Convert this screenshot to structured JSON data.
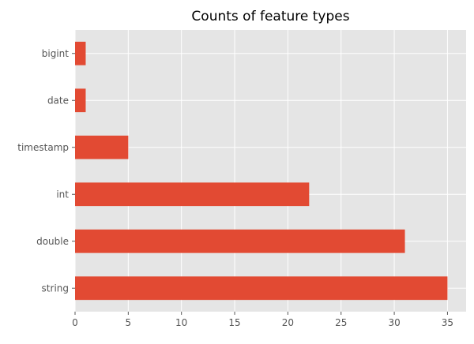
{
  "chart_data": {
    "type": "bar",
    "orientation": "horizontal",
    "title": "Counts of feature types",
    "xlabel": "",
    "ylabel": "",
    "categories": [
      "string",
      "double",
      "int",
      "timestamp",
      "date",
      "bigint"
    ],
    "values": [
      35,
      31,
      22,
      5,
      1,
      1
    ],
    "xlim": [
      0,
      36.75
    ],
    "xticks": [
      0,
      5,
      10,
      15,
      20,
      25,
      30,
      35
    ],
    "grid": true,
    "colors": {
      "bar": "#E24A33",
      "plot_background": "#E5E5E5",
      "grid": "#FFFFFF"
    }
  }
}
